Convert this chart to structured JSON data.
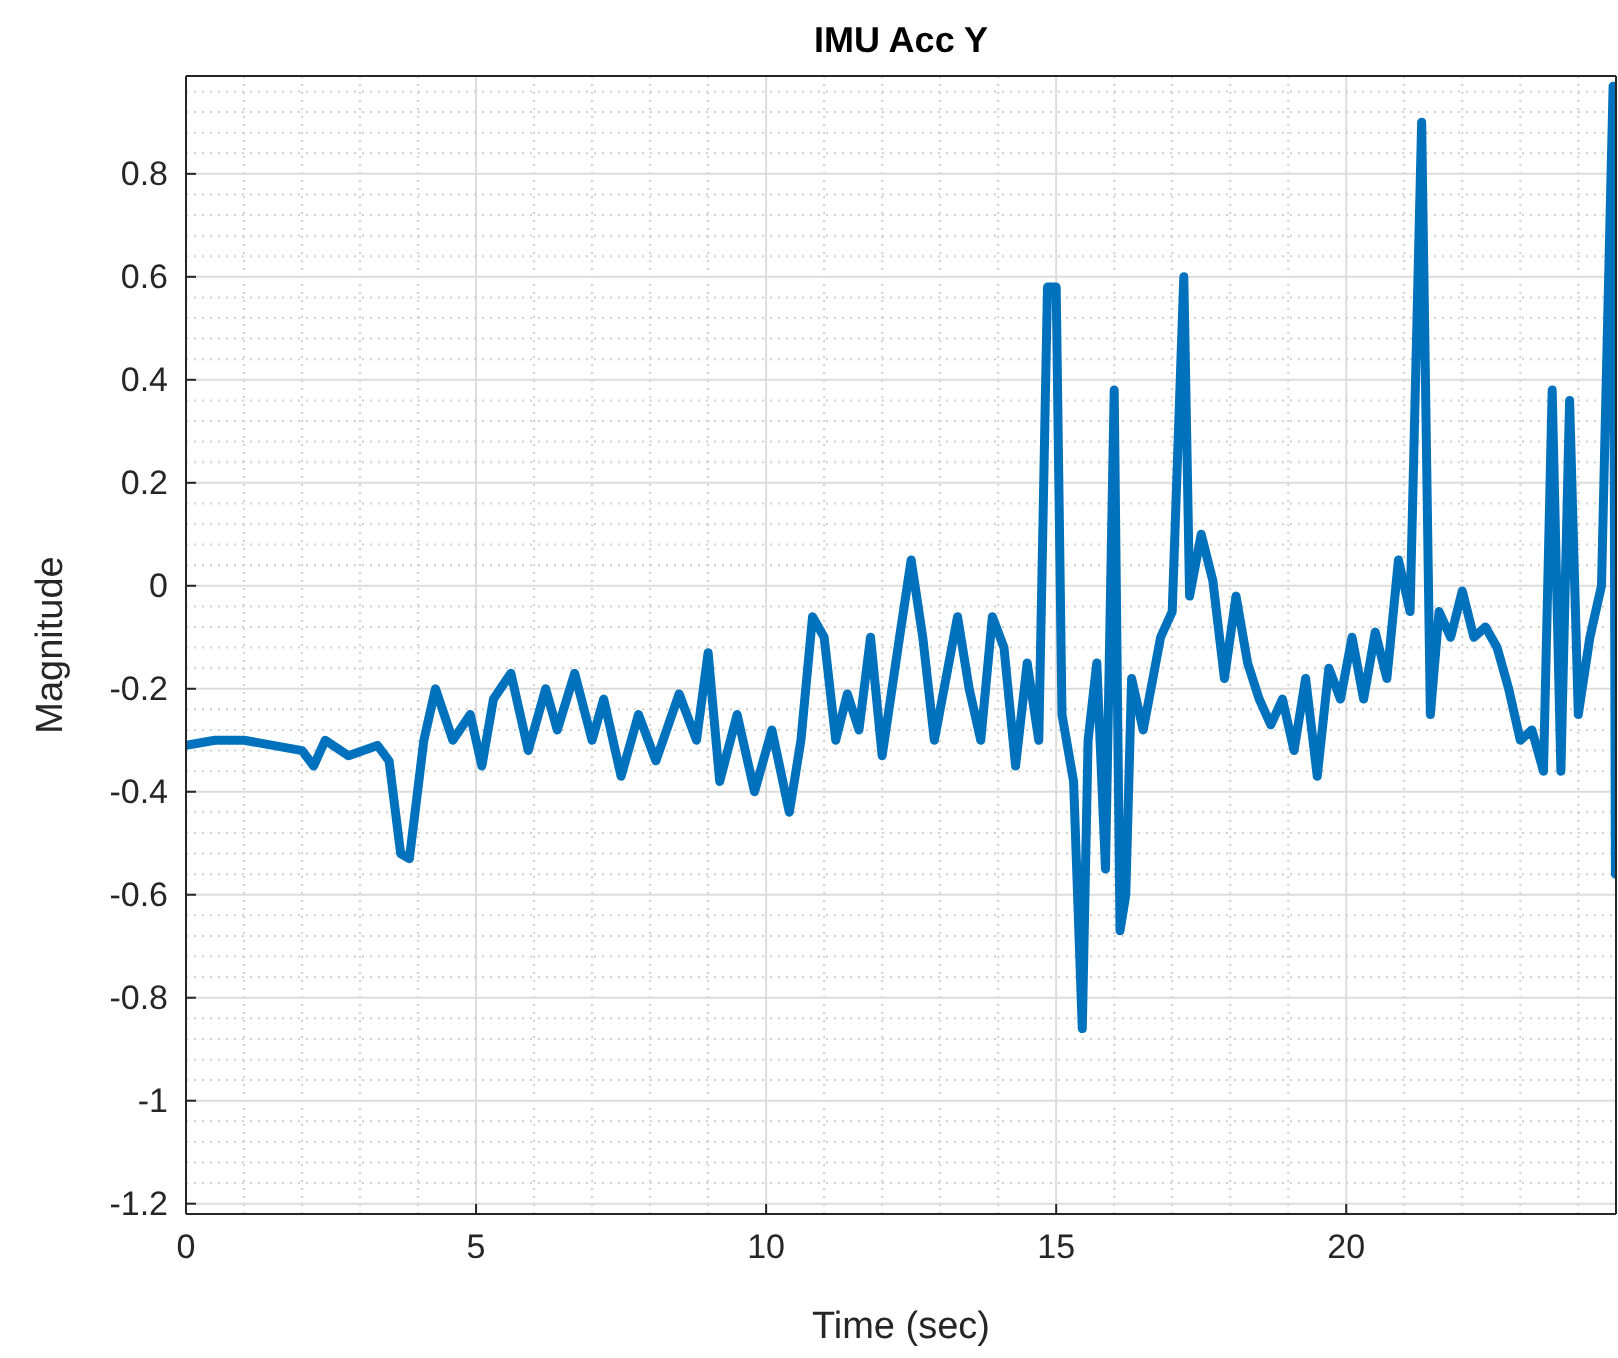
{
  "chart_data": {
    "type": "line",
    "title": "IMU Acc Y",
    "xlabel": "Time (sec)",
    "ylabel": "Magnitude",
    "xlim": [
      0,
      24.65
    ],
    "ylim": [
      -1.22,
      0.99
    ],
    "xticks": [
      0,
      5,
      10,
      15,
      20
    ],
    "yticks": [
      -1.2,
      -1,
      -0.8,
      -0.6,
      -0.4,
      -0.2,
      0,
      0.2,
      0.4,
      0.6,
      0.8
    ],
    "grid": true,
    "series": [
      {
        "color": "#0072bd",
        "x": [
          0,
          0.5,
          1,
          1.5,
          2,
          2.2,
          2.4,
          2.8,
          3.3,
          3.5,
          3.7,
          3.85,
          4.1,
          4.3,
          4.6,
          4.9,
          5.1,
          5.3,
          5.6,
          5.9,
          6.2,
          6.4,
          6.7,
          7.0,
          7.2,
          7.5,
          7.8,
          8.1,
          8.5,
          8.8,
          9.0,
          9.2,
          9.5,
          9.8,
          10.1,
          10.4,
          10.6,
          10.8,
          11.0,
          11.2,
          11.4,
          11.6,
          11.8,
          12.0,
          12.3,
          12.5,
          12.7,
          12.9,
          13.1,
          13.3,
          13.5,
          13.7,
          13.9,
          14.1,
          14.3,
          14.5,
          14.7,
          14.85,
          15.0,
          15.1,
          15.3,
          15.45,
          15.55,
          15.7,
          15.85,
          16.0,
          16.1,
          16.2,
          16.3,
          16.5,
          16.8,
          17.0,
          17.2,
          17.3,
          17.5,
          17.7,
          17.9,
          18.1,
          18.3,
          18.5,
          18.7,
          18.9,
          19.1,
          19.3,
          19.5,
          19.7,
          19.9,
          20.1,
          20.3,
          20.5,
          20.7,
          20.9,
          21.1,
          21.3,
          21.45,
          21.6,
          21.8,
          22.0,
          22.2,
          22.4,
          22.6,
          22.8,
          23.0,
          23.2,
          23.4,
          23.55,
          23.7,
          23.85,
          24.0,
          24.2,
          24.4,
          24.6,
          24.64
        ],
        "values": [
          -0.31,
          -0.3,
          -0.3,
          -0.31,
          -0.32,
          -0.35,
          -0.3,
          -0.33,
          -0.31,
          -0.34,
          -0.52,
          -0.53,
          -0.3,
          -0.2,
          -0.3,
          -0.25,
          -0.35,
          -0.22,
          -0.17,
          -0.32,
          -0.2,
          -0.28,
          -0.17,
          -0.3,
          -0.22,
          -0.37,
          -0.25,
          -0.34,
          -0.21,
          -0.3,
          -0.13,
          -0.38,
          -0.25,
          -0.4,
          -0.28,
          -0.44,
          -0.3,
          -0.06,
          -0.1,
          -0.3,
          -0.21,
          -0.28,
          -0.1,
          -0.33,
          -0.1,
          0.05,
          -0.1,
          -0.3,
          -0.18,
          -0.06,
          -0.2,
          -0.3,
          -0.06,
          -0.12,
          -0.35,
          -0.15,
          -0.3,
          0.58,
          0.58,
          -0.25,
          -0.38,
          -0.86,
          -0.3,
          -0.15,
          -0.55,
          0.38,
          -0.67,
          -0.6,
          -0.18,
          -0.28,
          -0.1,
          -0.05,
          0.6,
          -0.02,
          0.1,
          0.01,
          -0.18,
          -0.02,
          -0.15,
          -0.22,
          -0.27,
          -0.22,
          -0.32,
          -0.18,
          -0.37,
          -0.16,
          -0.22,
          -0.1,
          -0.22,
          -0.09,
          -0.18,
          0.05,
          -0.05,
          0.9,
          -0.25,
          -0.05,
          -0.1,
          -0.01,
          -0.1,
          -0.08,
          -0.12,
          -0.2,
          -0.3,
          -0.28,
          -0.36,
          0.38,
          -0.36,
          0.36,
          -0.25,
          -0.1,
          0,
          0.97,
          -0.56
        ]
      }
    ]
  }
}
